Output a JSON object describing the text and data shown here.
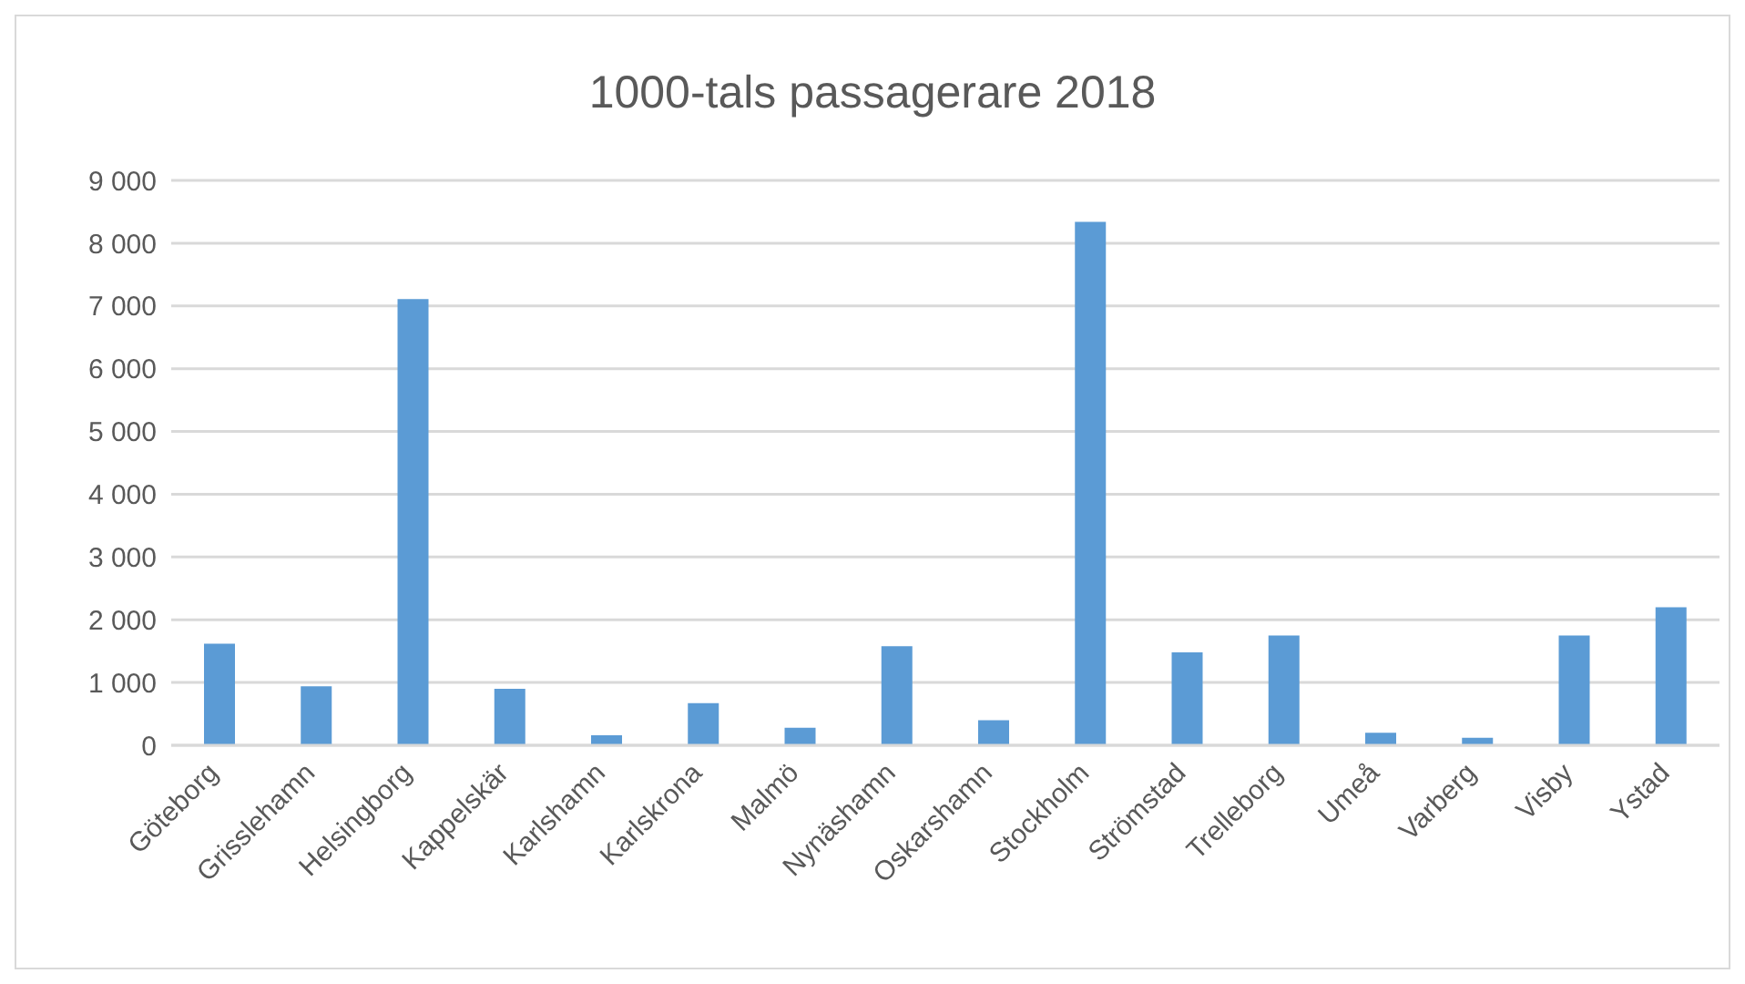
{
  "chart_data": {
    "type": "bar",
    "title": "1000-tals passagerare 2018",
    "categories": [
      "Göteborg",
      "Grisslehamn",
      "Helsingborg",
      "Kappelskär",
      "Karlshamn",
      "Karlskrona",
      "Malmö",
      "Nynäshamn",
      "Oskarshamn",
      "Stockholm",
      "Strömstad",
      "Trelleborg",
      "Umeå",
      "Varberg",
      "Visby",
      "Ystad"
    ],
    "values": [
      1620,
      940,
      7110,
      900,
      160,
      670,
      280,
      1580,
      400,
      8340,
      1480,
      1750,
      200,
      120,
      1750,
      2200
    ],
    "color": "#5b9bd5",
    "ylim": [
      0,
      9000
    ],
    "yticks": [
      {
        "value": 0,
        "label": "0"
      },
      {
        "value": 1000,
        "label": "1 000"
      },
      {
        "value": 2000,
        "label": "2 000"
      },
      {
        "value": 3000,
        "label": "3 000"
      },
      {
        "value": 4000,
        "label": "4 000"
      },
      {
        "value": 5000,
        "label": "5 000"
      },
      {
        "value": 6000,
        "label": "6 000"
      },
      {
        "value": 7000,
        "label": "7 000"
      },
      {
        "value": 8000,
        "label": "8 000"
      },
      {
        "value": 9000,
        "label": "9 000"
      }
    ],
    "grid": "y",
    "legend": false
  }
}
